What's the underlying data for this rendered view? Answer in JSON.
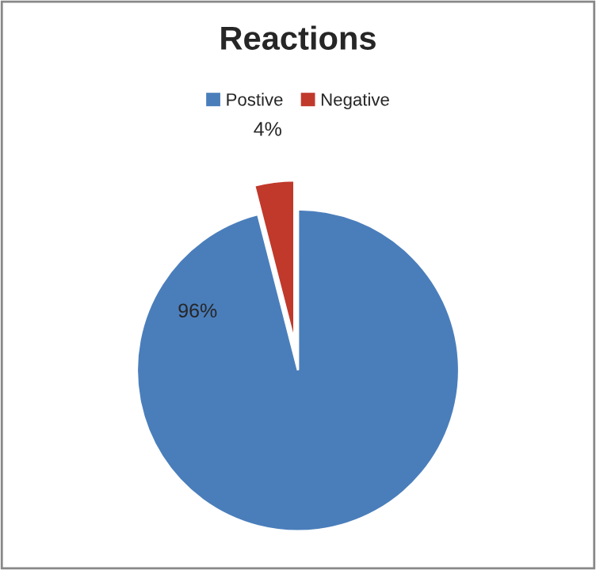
{
  "chart_data": {
    "type": "pie",
    "title": "Reactions",
    "categories": [
      "Postive",
      "Negative"
    ],
    "values": [
      96,
      4
    ],
    "colors": [
      "#4a7ebb",
      "#c0392b"
    ],
    "value_labels": [
      "96%",
      "4%"
    ],
    "legend": "top"
  }
}
